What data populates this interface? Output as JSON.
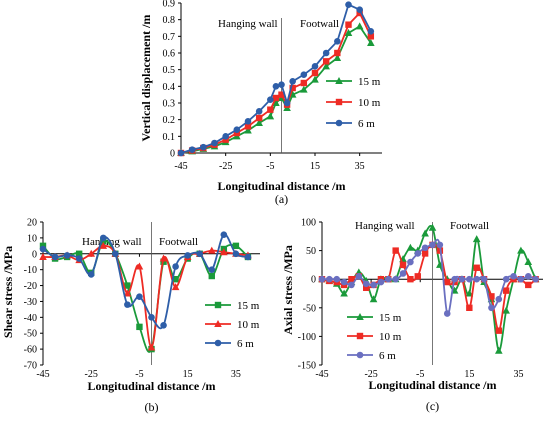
{
  "chart_data": [
    {
      "type": "line",
      "panel": "(a)",
      "xlabel": "Longitudinal distance /m",
      "ylabel": "Vertical displacement /m",
      "xlim": [
        -45,
        45
      ],
      "ylim": [
        0,
        0.9
      ],
      "xticks": [
        "-45",
        "-25",
        "-5",
        "15",
        "35"
      ],
      "yticks": [
        "0",
        "0.1",
        "0.2",
        "0.3",
        "0.4",
        "0.5",
        "0.6",
        "0.7",
        "0.8",
        "0.9"
      ],
      "divider_x": 0,
      "region_labels": [
        "Hanging wall",
        "Footwall"
      ],
      "legend_position": "right",
      "x": [
        -45,
        -40,
        -35,
        -30,
        -25,
        -20,
        -15,
        -10,
        -5,
        -2.5,
        0,
        2.5,
        5,
        10,
        15,
        20,
        25,
        30,
        35,
        40
      ],
      "series": [
        {
          "name": "15 m",
          "color": "#1a9a3a",
          "marker": "triangle",
          "values": [
            0.0,
            0.01,
            0.025,
            0.04,
            0.065,
            0.1,
            0.135,
            0.18,
            0.22,
            0.3,
            0.33,
            0.27,
            0.35,
            0.38,
            0.44,
            0.52,
            0.57,
            0.72,
            0.76,
            0.66
          ]
        },
        {
          "name": "10 m",
          "color": "#ee2b24",
          "marker": "square",
          "values": [
            0.0,
            0.015,
            0.03,
            0.05,
            0.08,
            0.12,
            0.16,
            0.21,
            0.26,
            0.33,
            0.35,
            0.29,
            0.39,
            0.42,
            0.48,
            0.55,
            0.6,
            0.77,
            0.84,
            0.7
          ]
        },
        {
          "name": "6 m",
          "color": "#2e5ea8",
          "marker": "circle",
          "values": [
            0.0,
            0.02,
            0.035,
            0.06,
            0.1,
            0.14,
            0.19,
            0.25,
            0.32,
            0.4,
            0.41,
            0.3,
            0.43,
            0.47,
            0.52,
            0.6,
            0.67,
            0.89,
            0.86,
            0.73
          ]
        }
      ]
    },
    {
      "type": "line",
      "panel": "(b)",
      "xlabel": "Longitudinal distance /m",
      "ylabel": "Shear stress /MPa",
      "xlim": [
        -45,
        45
      ],
      "ylim": [
        -70,
        20
      ],
      "xticks": [
        "-45",
        "-25",
        "-5",
        "15",
        "35"
      ],
      "yticks": [
        "20",
        "10",
        "0",
        "-10",
        "-20",
        "-30",
        "-40",
        "-50",
        "-60",
        "-70"
      ],
      "divider_x": 0,
      "region_labels": [
        "Hanging wall",
        "Footwall"
      ],
      "legend_position": "bottom-right",
      "x": [
        -45,
        -40,
        -35,
        -30,
        -25,
        -20,
        -15,
        -10,
        -5,
        0,
        5,
        10,
        15,
        20,
        25,
        30,
        35,
        40
      ],
      "series": [
        {
          "name": "15 m",
          "color": "#1a9a3a",
          "marker": "square",
          "values": [
            5,
            -3,
            -2,
            0,
            -12,
            8,
            0,
            -20,
            -46,
            -60,
            -5,
            -16,
            -3,
            0,
            -14,
            3,
            5,
            -2
          ]
        },
        {
          "name": "10 m",
          "color": "#ee2b24",
          "marker": "triangle",
          "values": [
            -2,
            -2,
            -1,
            -4,
            0,
            5,
            0,
            -25,
            -8,
            -59,
            -3,
            -21,
            -2,
            0,
            2,
            1,
            0,
            -1
          ]
        },
        {
          "name": "6 m",
          "color": "#2e5ea8",
          "marker": "circle",
          "values": [
            3,
            -2,
            -1,
            -3,
            -13,
            10,
            0,
            -32,
            -27,
            -40,
            -45,
            -8,
            -1,
            0,
            -10,
            12,
            0,
            -2
          ]
        }
      ]
    },
    {
      "type": "line",
      "panel": "(c)",
      "xlabel": "Longitudinal distance /m",
      "ylabel": "Axial stress /MPa",
      "xlim": [
        -45,
        45
      ],
      "ylim": [
        -150,
        100
      ],
      "xticks": [
        "-45",
        "-25",
        "-5",
        "15",
        "35"
      ],
      "yticks": [
        "100",
        "50",
        "0",
        "-50",
        "-100",
        "-150"
      ],
      "divider_x": 0,
      "region_labels": [
        "Hanging wall",
        "Footwall"
      ],
      "legend_position": "bottom-left",
      "x": [
        -45,
        -42,
        -39,
        -36,
        -33,
        -30,
        -27,
        -24,
        -21,
        -18,
        -15,
        -12,
        -9,
        -6,
        -3,
        0,
        3,
        6,
        9,
        12,
        15,
        18,
        21,
        24,
        27,
        30,
        33,
        36,
        39,
        42
      ],
      "series": [
        {
          "name": "15 m",
          "color": "#1a9a3a",
          "marker": "triangle",
          "values": [
            0,
            -3,
            -8,
            -25,
            -5,
            12,
            -3,
            -35,
            0,
            0,
            0,
            35,
            55,
            50,
            80,
            90,
            25,
            0,
            -20,
            0,
            -25,
            70,
            -5,
            -35,
            -125,
            -55,
            0,
            50,
            30,
            0
          ]
        },
        {
          "name": "10 m",
          "color": "#ee2b24",
          "marker": "square",
          "values": [
            0,
            -3,
            -5,
            -10,
            0,
            5,
            -15,
            -10,
            0,
            0,
            50,
            25,
            0,
            5,
            45,
            60,
            50,
            -5,
            -5,
            0,
            -50,
            20,
            0,
            -30,
            -90,
            -20,
            0,
            0,
            -10,
            0
          ]
        },
        {
          "name": "6 m",
          "color": "#6a6fc0",
          "marker": "circle",
          "values": [
            0,
            0,
            0,
            -5,
            -10,
            5,
            -8,
            -10,
            -5,
            0,
            0,
            10,
            30,
            45,
            55,
            60,
            60,
            -60,
            0,
            0,
            0,
            0,
            0,
            -50,
            -35,
            0,
            5,
            0,
            5,
            0
          ]
        }
      ]
    }
  ]
}
